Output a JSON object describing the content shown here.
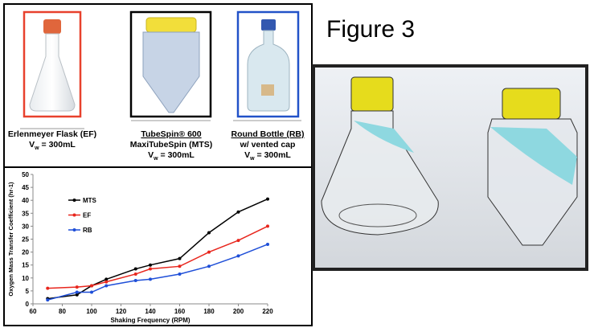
{
  "figure_label": "Figure 3",
  "containers": [
    {
      "lines": [
        "Erlenmeyer Flask (EF)"
      ],
      "volume": {
        "symbol": "V",
        "subscript": "w",
        "text": " = 300mL"
      }
    },
    {
      "lines": [
        "TubeSpin® 600",
        "MaxiTubeSpin (MTS)"
      ],
      "volume": {
        "symbol": "V",
        "subscript": "w",
        "text": " = 300mL"
      }
    },
    {
      "lines": [
        "Round Bottle (RB)",
        "w/ vented cap"
      ],
      "volume": {
        "symbol": "V",
        "subscript": "w",
        "text": " = 300mL"
      }
    }
  ],
  "chart_data": {
    "type": "line",
    "y_label": "Oxygen Mass Transfer Coefficient (hr-1)",
    "x_label": "Shaking Frequency (RPM)",
    "x": [
      70,
      90,
      100,
      110,
      130,
      140,
      160,
      180,
      200,
      220
    ],
    "series": [
      {
        "name": "MTS",
        "color": "#000000",
        "values": [
          2,
          3.5,
          7,
          9.5,
          13.5,
          15,
          17.5,
          27.5,
          35.5,
          40.5
        ]
      },
      {
        "name": "EF",
        "color": "#e8261d",
        "values": [
          6,
          6.5,
          7,
          8.5,
          11.5,
          13.5,
          14.5,
          20,
          24.5,
          30
        ]
      },
      {
        "name": "RB",
        "color": "#1f4fd8",
        "values": [
          1.5,
          4.5,
          4.5,
          7,
          9,
          9.5,
          11.5,
          14.5,
          18.5,
          23
        ]
      }
    ],
    "xlim": [
      60,
      220
    ],
    "xticks": [
      60,
      80,
      100,
      120,
      140,
      160,
      180,
      200,
      220
    ],
    "ylim": [
      0,
      50
    ],
    "yticks": [
      0,
      5,
      10,
      15,
      20,
      25,
      30,
      35,
      40,
      45,
      50
    ]
  }
}
